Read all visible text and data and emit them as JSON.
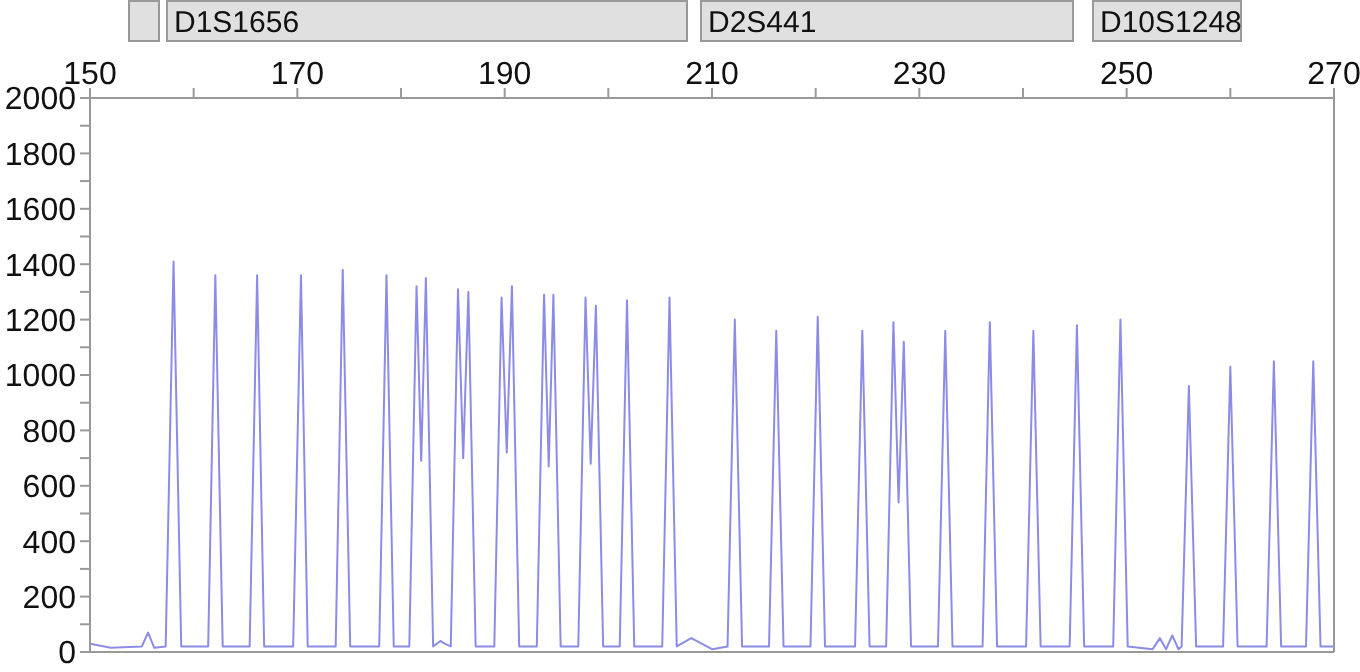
{
  "chart_data": {
    "type": "line",
    "xlim": [
      150,
      270
    ],
    "ylim": [
      0,
      2000
    ],
    "xticks": [
      150,
      {
        "value": 160,
        "label": null
      },
      170,
      {
        "value": 180,
        "label": null
      },
      190,
      {
        "value": 200,
        "label": null
      },
      210,
      {
        "value": 220,
        "label": null
      },
      230,
      {
        "value": 240,
        "label": null
      },
      250,
      {
        "value": 260,
        "label": null
      },
      270
    ],
    "yticks": [
      0,
      {
        "value": 100,
        "label": null
      },
      200,
      {
        "value": 300,
        "label": null
      },
      400,
      {
        "value": 500,
        "label": null
      },
      600,
      {
        "value": 700,
        "label": null
      },
      800,
      {
        "value": 900,
        "label": null
      },
      1000,
      {
        "value": 1100,
        "label": null
      },
      1200,
      {
        "value": 1300,
        "label": null
      },
      1400,
      {
        "value": 1500,
        "label": null
      },
      1600,
      {
        "value": 1700,
        "label": null
      },
      1800,
      {
        "value": 1900,
        "label": null
      },
      2000
    ],
    "grid": false,
    "legend": false,
    "marker": "none",
    "line_style": "solid",
    "annotations": [
      "D1S1656",
      "D2S441",
      "D10S1248"
    ],
    "series": [
      {
        "color": "#8c8ce6",
        "x": [
          150,
          152,
          155,
          155.6,
          156.2,
          157.3,
          158.06,
          158.8,
          161.4,
          162.09,
          162.8,
          165.4,
          166.12,
          166.8,
          169.6,
          170.35,
          171.0,
          173.7,
          174.38,
          175.1,
          177.9,
          178.6,
          179.3,
          180.8,
          181.5,
          181.95,
          182.4,
          183.1,
          183.8,
          184.2,
          184.8,
          185.5,
          186.0,
          186.5,
          187.2,
          189.0,
          189.7,
          190.2,
          190.7,
          191.4,
          193.1,
          193.8,
          194.25,
          194.7,
          195.4,
          197.1,
          197.8,
          198.3,
          198.8,
          199.5,
          201.1,
          201.8,
          202.5,
          205.2,
          205.9,
          206.6,
          208.0,
          209,
          210,
          211.5,
          212.2,
          212.9,
          215.5,
          216.2,
          216.9,
          219.5,
          220.2,
          220.9,
          223.8,
          224.5,
          225.2,
          226.8,
          227.5,
          228.0,
          228.5,
          229.2,
          231.8,
          232.5,
          233.2,
          236.1,
          236.8,
          237.5,
          240.3,
          241.0,
          241.7,
          244.5,
          245.2,
          245.9,
          248.7,
          249.4,
          250.1,
          252.5,
          253.2,
          253.8,
          254.4,
          255.0,
          255.3,
          256.0,
          256.7,
          259.3,
          260.0,
          260.7,
          263.5,
          264.2,
          264.9,
          267.3,
          268.0,
          268.7,
          270
        ],
        "values": [
          30,
          15,
          20,
          70,
          15,
          20,
          1410,
          20,
          20,
          1360,
          20,
          20,
          1360,
          20,
          20,
          1360,
          20,
          20,
          1380,
          20,
          20,
          1360,
          20,
          20,
          1320,
          690,
          1350,
          20,
          40,
          30,
          20,
          1310,
          700,
          1300,
          20,
          20,
          1280,
          720,
          1320,
          20,
          20,
          1290,
          670,
          1290,
          20,
          20,
          1280,
          680,
          1250,
          20,
          20,
          1270,
          20,
          20,
          1280,
          20,
          50,
          30,
          10,
          20,
          1200,
          20,
          20,
          1160,
          20,
          20,
          1210,
          20,
          20,
          1160,
          20,
          20,
          1190,
          540,
          1120,
          20,
          20,
          1160,
          20,
          20,
          1190,
          20,
          20,
          1160,
          20,
          20,
          1180,
          20,
          20,
          1200,
          20,
          10,
          50,
          10,
          60,
          10,
          20,
          960,
          20,
          20,
          1030,
          20,
          20,
          1050,
          20,
          20,
          1050,
          20,
          20
        ]
      }
    ]
  }
}
